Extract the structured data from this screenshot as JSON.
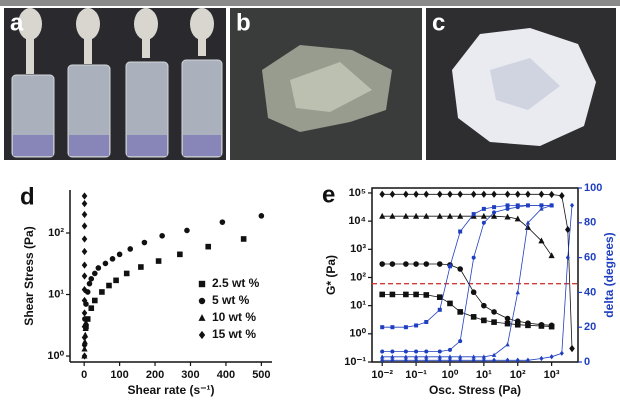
{
  "panels": [
    {
      "label": "a"
    },
    {
      "label": "b"
    },
    {
      "label": "c"
    }
  ],
  "chart_data": [
    {
      "type": "scatter",
      "panel_label": "d",
      "ylabel": "Shear Stress (Pa)",
      "xlabel": "Shear rate (s⁻¹)",
      "xlim": [
        -40,
        530
      ],
      "xticks": [
        0,
        100,
        200,
        300,
        400,
        500
      ],
      "ylim": [
        0.8,
        500
      ],
      "ylog": true,
      "yticks": [
        {
          "value": 1,
          "label": "10⁰"
        },
        {
          "value": 10,
          "label": "10¹"
        },
        {
          "value": 100,
          "label": "10²"
        }
      ],
      "frame": "axes",
      "legend": "lower right",
      "series": [
        {
          "name": "2.5 wt %",
          "color": "#111111",
          "marker": "square",
          "x": [
            5,
            10,
            20,
            30,
            50,
            70,
            90,
            120,
            160,
            210,
            270,
            350,
            450
          ],
          "values": [
            3,
            4,
            6,
            8,
            11,
            14,
            17,
            22,
            28,
            35,
            45,
            60,
            80
          ]
        },
        {
          "name": "5 wt %",
          "color": "#111111",
          "marker": "circle",
          "x": [
            2,
            5,
            10,
            15,
            20,
            30,
            40,
            60,
            80,
            100,
            130,
            170,
            220,
            290,
            390,
            500
          ],
          "values": [
            4,
            7,
            11,
            15,
            18,
            22,
            27,
            32,
            38,
            45,
            55,
            70,
            90,
            110,
            150,
            190
          ]
        },
        {
          "name": "10 wt %",
          "color": "#111111",
          "marker": "triangle",
          "x": [
            0.5,
            1,
            2,
            3,
            4,
            5
          ],
          "values": [
            1,
            1.3,
            1.7,
            2.2,
            2.8,
            3.5
          ]
        },
        {
          "name": "15 wt %",
          "color": "#111111",
          "marker": "diamond",
          "x": [
            1,
            1,
            1,
            1,
            1,
            1,
            1,
            1,
            1,
            1,
            1,
            1,
            1,
            1,
            1
          ],
          "values": [
            1,
            1.5,
            2,
            3,
            5,
            8,
            12,
            20,
            30,
            50,
            80,
            130,
            200,
            300,
            400
          ]
        }
      ]
    },
    {
      "type": "line",
      "panel_label": "e",
      "ylabel": "G* (Pa)",
      "y2label": "delta (degrees)",
      "xlabel": "Osc. Stress (Pa)",
      "xlog": true,
      "ylog": true,
      "xlim": [
        0.005,
        6000
      ],
      "ylim": [
        0.1,
        150000
      ],
      "y2lim": [
        0,
        100
      ],
      "xticks": [
        {
          "value": 0.01,
          "label": "10⁻²"
        },
        {
          "value": 0.1,
          "label": "10⁻¹"
        },
        {
          "value": 1,
          "label": "10⁰"
        },
        {
          "value": 10,
          "label": "10¹"
        },
        {
          "value": 100,
          "label": "10²"
        },
        {
          "value": 1000,
          "label": "10³"
        }
      ],
      "yticks": [
        {
          "value": 0.1,
          "label": "10⁻¹"
        },
        {
          "value": 1,
          "label": "10⁰"
        },
        {
          "value": 10,
          "label": "10¹"
        },
        {
          "value": 100,
          "label": "10²"
        },
        {
          "value": 1000,
          "label": "10³"
        },
        {
          "value": 10000,
          "label": "10⁴"
        },
        {
          "value": 100000,
          "label": "10⁵"
        }
      ],
      "y2ticks": [
        0,
        20,
        40,
        60,
        80,
        100
      ],
      "y2color": "#1f3fbf",
      "frame": "box",
      "reference_line": {
        "axis": "y2",
        "value": 45,
        "color": "#d33b3b"
      },
      "x": [
        0.01,
        0.02,
        0.05,
        0.1,
        0.2,
        0.5,
        1,
        2,
        5,
        10,
        20,
        50,
        100,
        200,
        500,
        1000,
        2000,
        3000,
        4000
      ],
      "series": [
        {
          "color": "#111111",
          "marker": "diamond",
          "values": [
            90000,
            90000,
            90000,
            90000,
            90000,
            90000,
            90000,
            90000,
            90000,
            90000,
            90000,
            90000,
            90000,
            90000,
            90000,
            88000,
            80000,
            5000,
            0.3
          ]
        },
        {
          "color": "#111111",
          "marker": "triangle",
          "values": [
            15000,
            15000,
            15000,
            15000,
            15000,
            15000,
            15000,
            15000,
            15000,
            15000,
            15000,
            14000,
            12000,
            6000,
            2000,
            600,
            null,
            null,
            null
          ]
        },
        {
          "color": "#111111",
          "marker": "circle",
          "values": [
            300,
            300,
            300,
            300,
            300,
            300,
            280,
            200,
            30,
            10,
            6,
            3.5,
            2.8,
            2.4,
            2.1,
            2,
            null,
            null,
            null
          ]
        },
        {
          "color": "#111111",
          "marker": "square",
          "values": [
            25,
            25,
            25,
            25,
            24,
            20,
            12,
            6,
            4,
            3,
            2.6,
            2.3,
            2.1,
            2,
            1.9,
            1.8,
            null,
            null,
            null
          ]
        },
        {
          "color": "#1f3fbf",
          "marker": "diamond",
          "axis": "y2",
          "values": [
            1,
            1,
            1,
            1,
            1,
            1,
            1,
            1,
            1,
            1,
            1,
            1,
            1,
            1,
            2,
            3,
            5,
            60,
            90
          ]
        },
        {
          "color": "#1f3fbf",
          "marker": "triangle",
          "axis": "y2",
          "values": [
            3,
            3,
            3,
            3,
            3,
            3,
            3,
            3,
            3,
            3,
            4,
            10,
            40,
            80,
            88,
            90,
            null,
            null,
            null
          ]
        },
        {
          "color": "#1f3fbf",
          "marker": "circle",
          "axis": "y2",
          "values": [
            6,
            6,
            6,
            6,
            6,
            6,
            7,
            12,
            60,
            80,
            86,
            88,
            89,
            90,
            90,
            90,
            null,
            null,
            null
          ]
        },
        {
          "color": "#1f3fbf",
          "marker": "square",
          "axis": "y2",
          "values": [
            20,
            20,
            20,
            21,
            23,
            30,
            55,
            75,
            85,
            88,
            89,
            90,
            90,
            90,
            90,
            90,
            null,
            null,
            null
          ]
        }
      ]
    }
  ]
}
